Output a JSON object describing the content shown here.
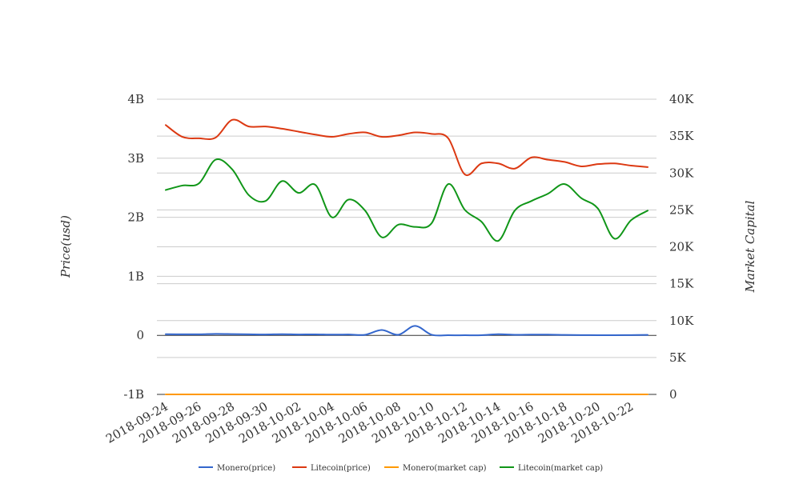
{
  "chart_data": {
    "type": "line",
    "title": "",
    "x": [
      "2018-09-24",
      "2018-09-25",
      "2018-09-26",
      "2018-09-27",
      "2018-09-28",
      "2018-09-29",
      "2018-09-30",
      "2018-10-01",
      "2018-10-02",
      "2018-10-03",
      "2018-10-04",
      "2018-10-05",
      "2018-10-06",
      "2018-10-07",
      "2018-10-08",
      "2018-10-09",
      "2018-10-10",
      "2018-10-11",
      "2018-10-12",
      "2018-10-13",
      "2018-10-14",
      "2018-10-15",
      "2018-10-16",
      "2018-10-17",
      "2018-10-18",
      "2018-10-19",
      "2018-10-20",
      "2018-10-21",
      "2018-10-22",
      "2018-10-23"
    ],
    "x_tick_labels": [
      "2018-09-24",
      "2018-09-26",
      "2018-09-28",
      "2018-09-30",
      "2018-10-02",
      "2018-10-04",
      "2018-10-06",
      "2018-10-08",
      "2018-10-10",
      "2018-10-12",
      "2018-10-14",
      "2018-10-16",
      "2018-10-18",
      "2018-10-20",
      "2018-10-22"
    ],
    "ylabel_left": "Price(usd)",
    "ylabel_right": "Market Capital",
    "ylim_left": [
      -1000000000,
      4000000000
    ],
    "ylim_right": [
      0,
      40000
    ],
    "yticks_left": [
      "-1B",
      "0",
      "1B",
      "2B",
      "3B",
      "4B"
    ],
    "yticks_right": [
      "0",
      "5K",
      "10K",
      "15K",
      "20K",
      "25K",
      "30K",
      "35K",
      "40K"
    ],
    "grid": true,
    "legend_position": "bottom",
    "series": [
      {
        "name": "Monero(price)",
        "axis": "left",
        "color": "#3366cc",
        "values": [
          20000000,
          18000000,
          18000000,
          25000000,
          22000000,
          18000000,
          15000000,
          20000000,
          15000000,
          17000000,
          12000000,
          15000000,
          10000000,
          90000000,
          10000000,
          160000000,
          10000000,
          2000000,
          2000000,
          3000000,
          20000000,
          10000000,
          12000000,
          13000000,
          8000000,
          5000000,
          3000000,
          2000000,
          5000000,
          8000000
        ]
      },
      {
        "name": "Litecoin(price)",
        "axis": "right",
        "color": "#dc3912",
        "values": [
          36500,
          34900,
          34700,
          34800,
          37200,
          36300,
          36300,
          36000,
          35600,
          35200,
          34900,
          35300,
          35500,
          34900,
          35100,
          35500,
          35300,
          34700,
          29800,
          31300,
          31300,
          30600,
          32100,
          31800,
          31500,
          30900,
          31200,
          31300,
          31000,
          30800
        ]
      },
      {
        "name": "Monero(market cap)",
        "axis": "left",
        "color": "#ff9900",
        "values": [
          -1000000000,
          -1000000000,
          -1000000000,
          -1000000000,
          -1000000000,
          -1000000000,
          -1000000000,
          -1000000000,
          -1000000000,
          -1000000000,
          -1000000000,
          -1000000000,
          -1000000000,
          -1000000000,
          -1000000000,
          -1000000000,
          -1000000000,
          -1000000000,
          -1000000000,
          -1000000000,
          -1000000000,
          -1000000000,
          -1000000000,
          -1000000000,
          -1000000000,
          -1000000000,
          -1000000000,
          -1000000000,
          -1000000000,
          -1000000000
        ]
      },
      {
        "name": "Litecoin(market cap)",
        "axis": "right",
        "color": "#109618",
        "values": [
          27700,
          28300,
          28600,
          31800,
          30500,
          27000,
          26200,
          28900,
          27300,
          28400,
          24000,
          26400,
          24900,
          21300,
          23000,
          22700,
          23200,
          28500,
          25000,
          23400,
          20800,
          24900,
          26200,
          27200,
          28500,
          26600,
          25200,
          21100,
          23600,
          24900
        ]
      }
    ]
  }
}
